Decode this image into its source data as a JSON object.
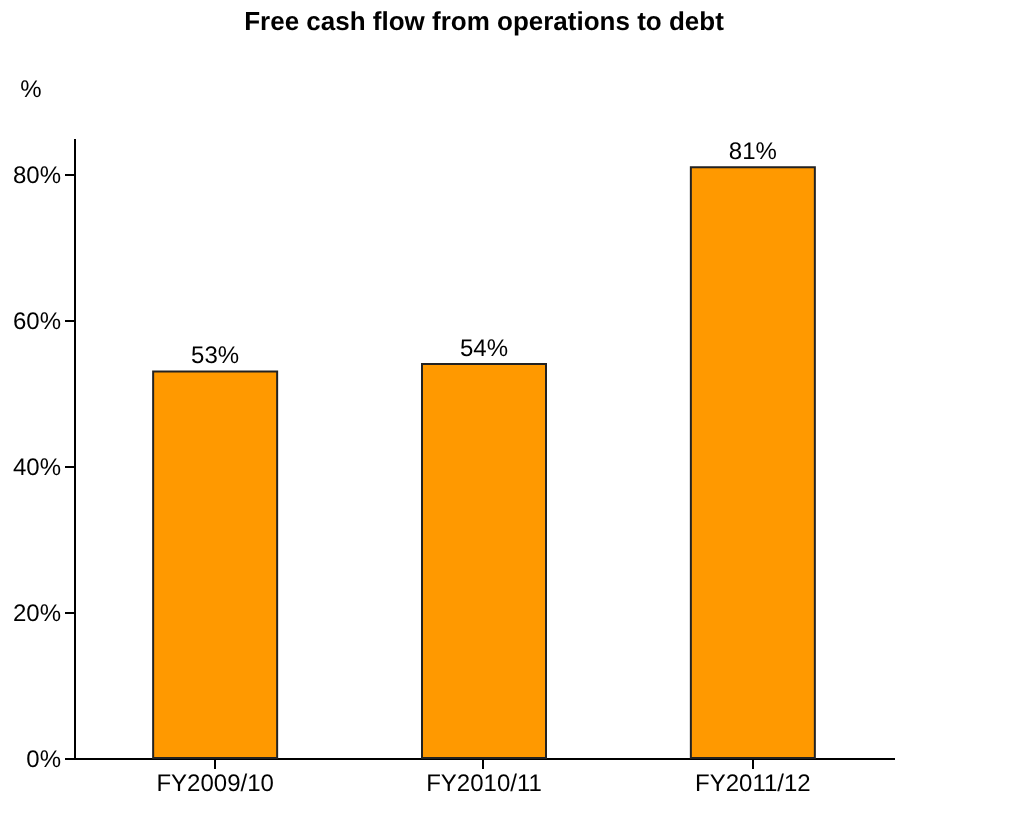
{
  "chart_data": {
    "type": "bar",
    "title": "Free cash flow from operations to debt",
    "ylabel": "%",
    "categories": [
      "FY2009/10",
      "FY2010/11",
      "FY2011/12"
    ],
    "values": [
      53,
      54,
      81
    ],
    "color": "#ff9900",
    "value_labels": [
      "53%",
      "54%",
      "81%"
    ],
    "ylim": [
      0,
      85
    ],
    "yticks": [
      {
        "value": 0,
        "label": "0%"
      },
      {
        "value": 20,
        "label": "20%"
      },
      {
        "value": 40,
        "label": "40%"
      },
      {
        "value": 60,
        "label": "60%"
      },
      {
        "value": 80,
        "label": "80%"
      }
    ],
    "grid": false
  }
}
